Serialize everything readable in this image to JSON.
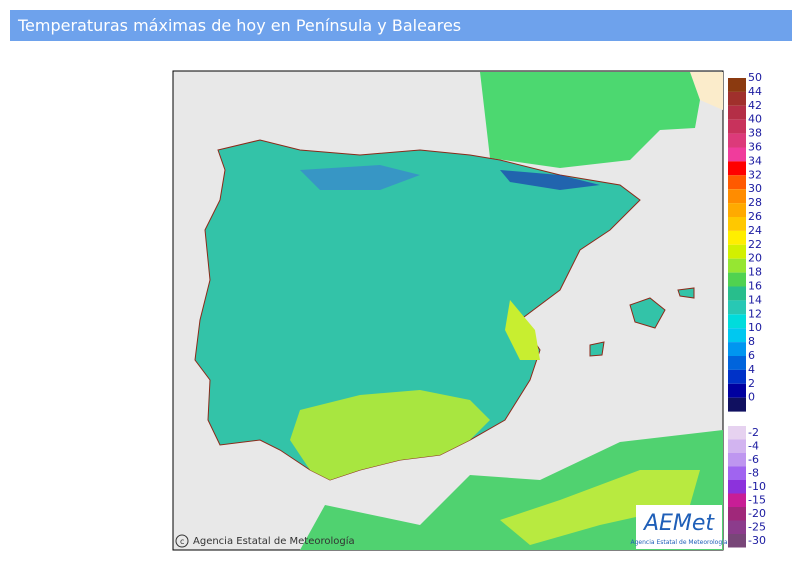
{
  "header": {
    "title": "Temperaturas máximas de hoy en Península y Baleares"
  },
  "legend": {
    "entries": [
      {
        "label": 50,
        "color": "#8b3a10"
      },
      {
        "label": 44,
        "color": "#a0302c"
      },
      {
        "label": 42,
        "color": "#b42e46"
      },
      {
        "label": 40,
        "color": "#c8325c"
      },
      {
        "label": 38,
        "color": "#dc3a7a"
      },
      {
        "label": 36,
        "color": "#f03c9c"
      },
      {
        "label": 34,
        "color": "#ff0000"
      },
      {
        "label": 32,
        "color": "#ff5a00"
      },
      {
        "label": 30,
        "color": "#ff8c00"
      },
      {
        "label": 28,
        "color": "#ffaa00"
      },
      {
        "label": 26,
        "color": "#ffc800"
      },
      {
        "label": 24,
        "color": "#ffee00"
      },
      {
        "label": 22,
        "color": "#d2f000"
      },
      {
        "label": 20,
        "color": "#96e632"
      },
      {
        "label": 18,
        "color": "#50d250"
      },
      {
        "label": 16,
        "color": "#28be8c"
      },
      {
        "label": 14,
        "color": "#28c8b4"
      },
      {
        "label": 12,
        "color": "#00dcdc"
      },
      {
        "label": 10,
        "color": "#00c8f0"
      },
      {
        "label": 8,
        "color": "#0096f0"
      },
      {
        "label": 6,
        "color": "#0064dc"
      },
      {
        "label": 4,
        "color": "#0032c8"
      },
      {
        "label": 2,
        "color": "#0000a0"
      },
      {
        "label": 0,
        "color": "#101060"
      },
      {
        "label": -2,
        "color": "#e6d2f0"
      },
      {
        "label": -4,
        "color": "#d2b4f0"
      },
      {
        "label": -6,
        "color": "#be96f0"
      },
      {
        "label": -8,
        "color": "#a064f0"
      },
      {
        "label": -10,
        "color": "#8c32dc"
      },
      {
        "label": -15,
        "color": "#c81e96"
      },
      {
        "label": -20,
        "color": "#a0287a"
      },
      {
        "label": -25,
        "color": "#8c3c8c"
      },
      {
        "label": -30,
        "color": "#784678"
      }
    ]
  },
  "map": {
    "credit": "Agencia Estatal de Meteorología",
    "logo": {
      "name": "AEMet",
      "subtitle": "Agencia Estatal de Meteorología"
    }
  }
}
